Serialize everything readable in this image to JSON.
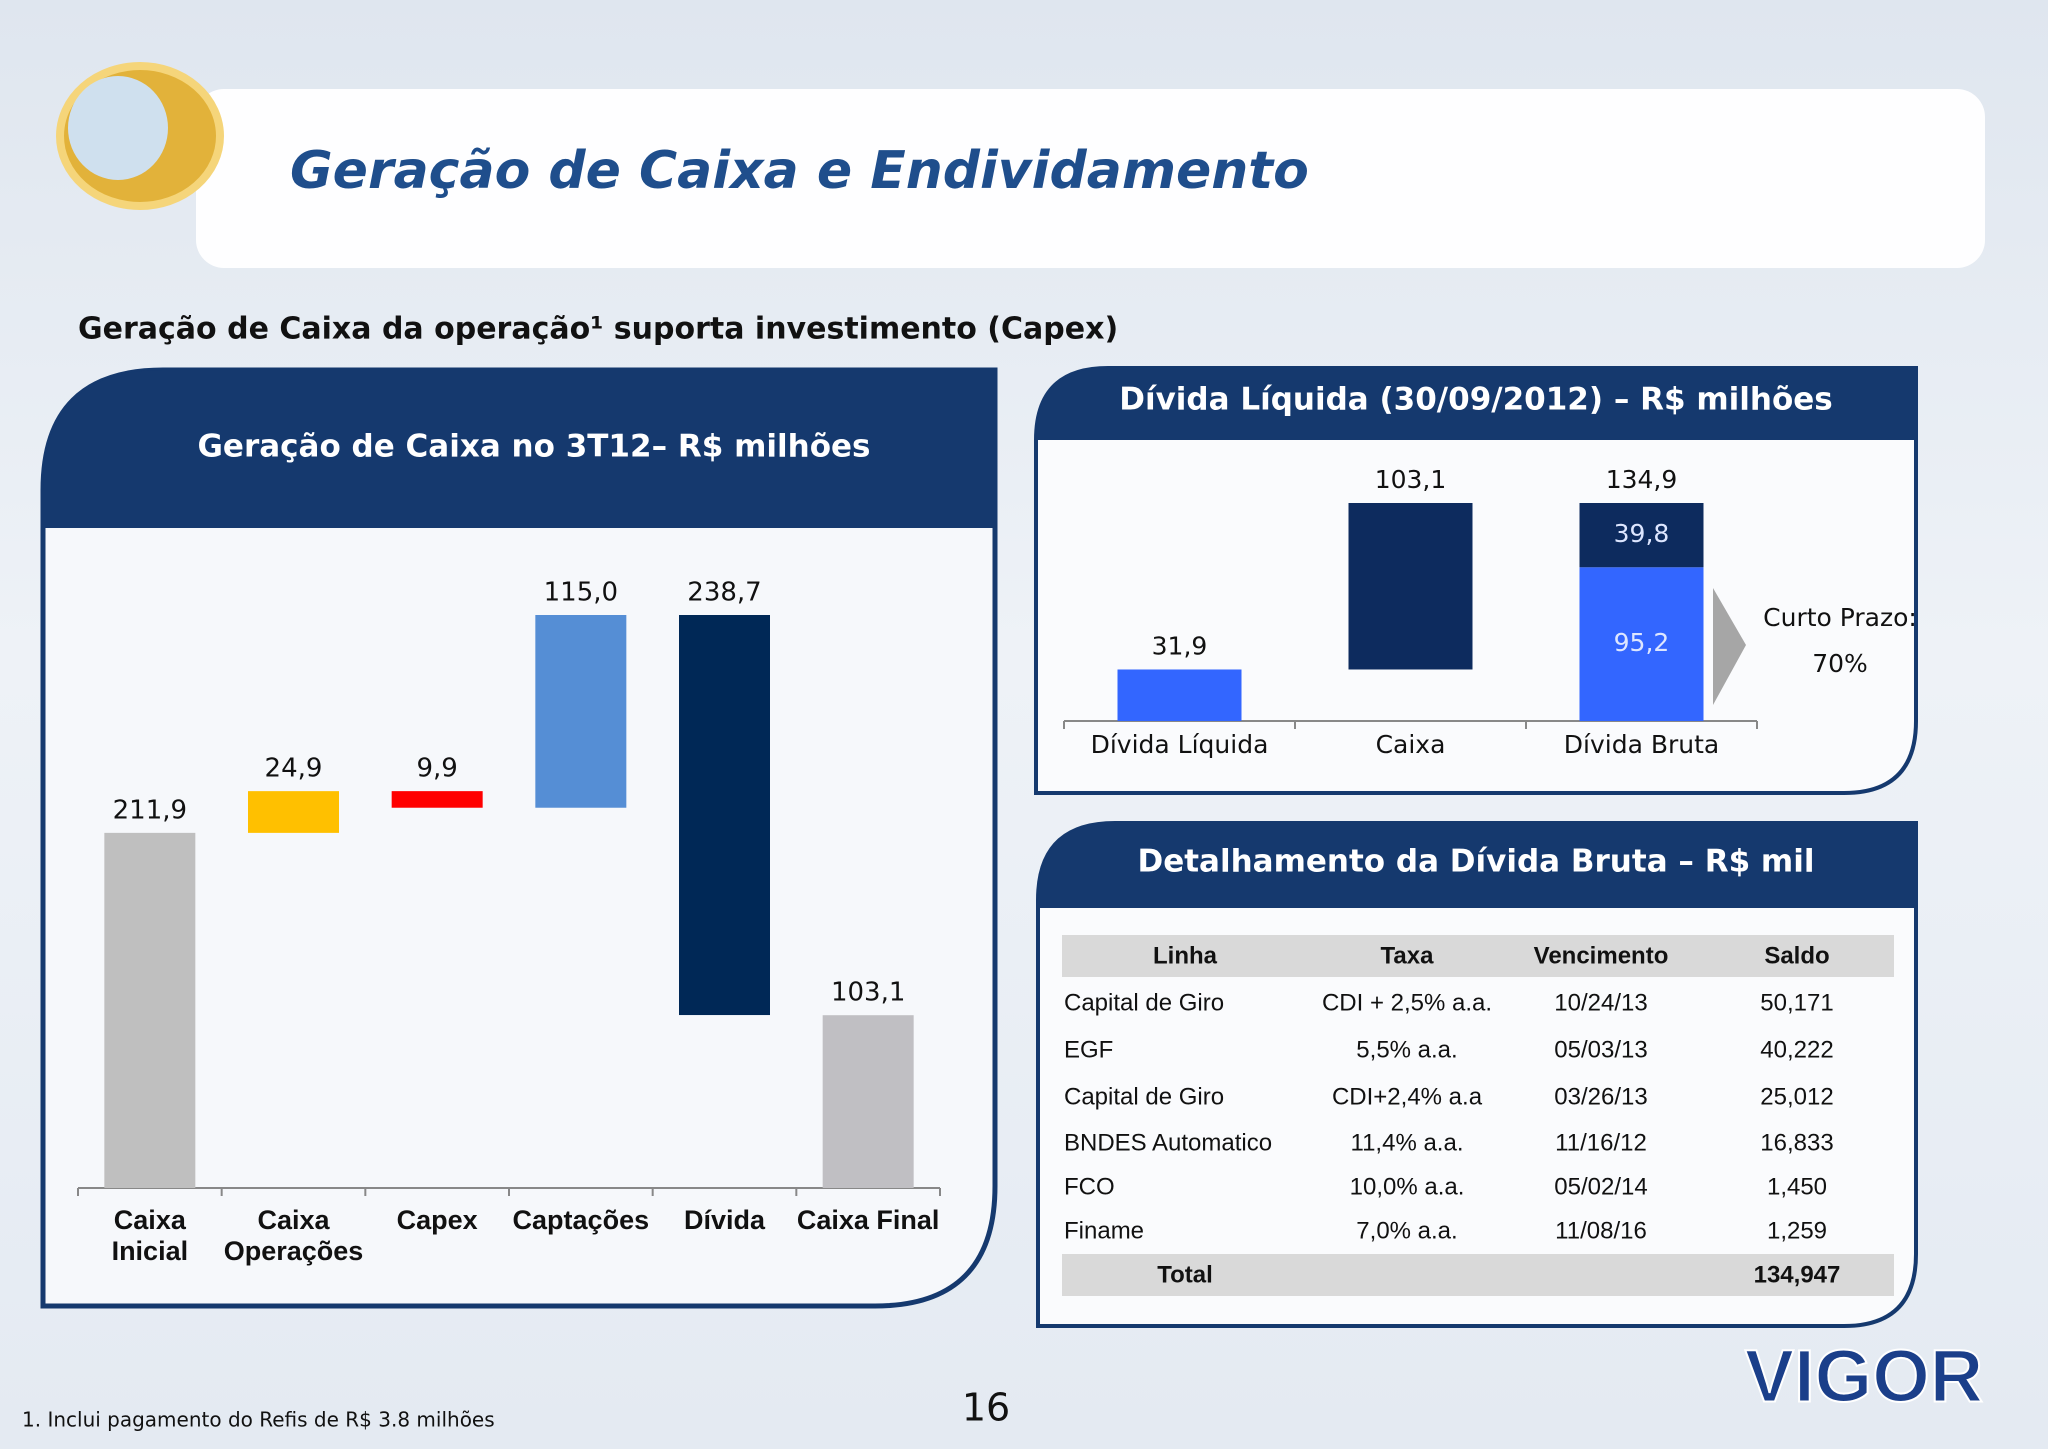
{
  "header": {
    "title": "Geração de Caixa e Endividamento"
  },
  "subtitle": "Geração de Caixa da operação¹ suporta investimento (Capex)",
  "chart_data": [
    {
      "type": "waterfall",
      "title": "Geração de Caixa no 3T12– R$ milhões",
      "categories": [
        "Caixa\nInicial",
        "Caixa\nOperações",
        "Capex",
        "Captações",
        "Dívida",
        "Caixa Final"
      ],
      "values": [
        211.9,
        24.9,
        -9.9,
        115.0,
        -238.7,
        103.1
      ],
      "value_labels": [
        "211,9",
        "24,9",
        "9,9",
        "115,0",
        "238,7",
        "103,1"
      ],
      "steps": [
        "total",
        "delta",
        "delta",
        "delta",
        "delta",
        "total"
      ],
      "colors": [
        "#bfbfbf",
        "#ffc000",
        "#ff0000",
        "#558ed5",
        "#002856",
        "#c0bfc3"
      ]
    },
    {
      "type": "waterfall",
      "title": "Dívida Líquida (30/09/2012) – R$ milhões",
      "categories": [
        "Dívida Líquida",
        "Caixa",
        "Dívida Bruta"
      ],
      "steps": [
        "total",
        "delta",
        "total"
      ],
      "series": [
        {
          "color": "#3366ff",
          "values": [
            31.9,
            null,
            95.2
          ],
          "value_labels": [
            "31,9",
            null,
            "95,2"
          ]
        },
        {
          "color": "#0d2b5e",
          "values": [
            null,
            103.1,
            39.8
          ],
          "value_labels": [
            null,
            "103,1",
            "39,8"
          ]
        }
      ],
      "totals": [
        null,
        null,
        134.9
      ],
      "total_labels": [
        null,
        null,
        "134,9"
      ],
      "annotation": {
        "label": "Curto Prazo:",
        "value": "70%"
      }
    }
  ],
  "table": {
    "title": "Detalhamento da Dívida Bruta – R$ mil",
    "columns": [
      "Linha",
      "Taxa",
      "Vencimento",
      "Saldo"
    ],
    "rows": [
      [
        "Capital de Giro",
        "CDI + 2,5% a.a.",
        "10/24/13",
        "50,171"
      ],
      [
        "EGF",
        "5,5% a.a.",
        "05/03/13",
        "40,222"
      ],
      [
        "Capital de Giro",
        "CDI+2,4%  a.a",
        "03/26/13",
        "25,012"
      ],
      [
        "BNDES Automatico",
        "11,4% a.a.",
        "11/16/12",
        "16,833"
      ],
      [
        "FCO",
        "10,0% a.a.",
        "05/02/14",
        "1,450"
      ],
      [
        "Finame",
        "7,0% a.a.",
        "11/08/16",
        "1,259"
      ]
    ],
    "total": [
      "Total",
      "134,947"
    ]
  },
  "footnote": "1. Inclui pagamento do Refis de R$ 3.8 milhões",
  "page_number": "16",
  "logo": "VIGOR"
}
